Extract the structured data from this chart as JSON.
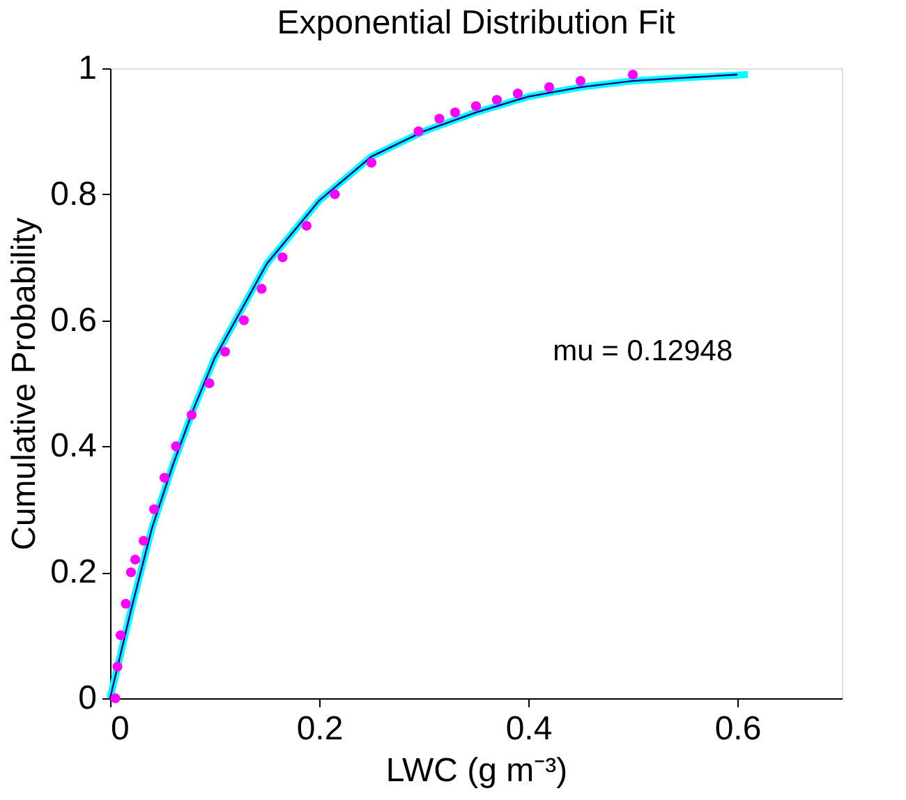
{
  "chart_data": {
    "type": "scatter",
    "title": "Exponential Distribution Fit",
    "xlabel": "LWC (g m⁻³)",
    "ylabel": "Cumulative Probability",
    "xlim": [
      0,
      0.7
    ],
    "xticks": [
      0,
      0.2,
      0.4,
      0.6
    ],
    "ylim": [
      0,
      1
    ],
    "yticks": [
      0,
      0.2,
      0.4,
      0.6,
      0.8,
      1
    ],
    "marker": "circle",
    "annotations": [
      "mu = 0.12948"
    ],
    "series": [
      {
        "color": "#ff00ff",
        "x": [
          0.005,
          0.007,
          0.01,
          0.015,
          0.02,
          0.024,
          0.032,
          0.042,
          0.052,
          0.063,
          0.078,
          0.095,
          0.11,
          0.128,
          0.145,
          0.165,
          0.188,
          0.215,
          0.25,
          0.295,
          0.315,
          0.33,
          0.35,
          0.37,
          0.39,
          0.42,
          0.45,
          0.5
        ],
        "values": [
          0,
          0.05,
          0.1,
          0.15,
          0.2,
          0.22,
          0.25,
          0.3,
          0.35,
          0.4,
          0.45,
          0.5,
          0.55,
          0.6,
          0.65,
          0.7,
          0.75,
          0.8,
          0.85,
          0.9,
          0.92,
          0.93,
          0.94,
          0.95,
          0.96,
          0.97,
          0.98,
          0.99
        ]
      },
      {
        "type": "line",
        "marker": "none",
        "line_style": "solid",
        "color": "#00ffff",
        "x": [
          0,
          0.02,
          0.04,
          0.06,
          0.08,
          0.1,
          0.12,
          0.15,
          0.18,
          0.2,
          0.25,
          0.3,
          0.35,
          0.4,
          0.45,
          0.5,
          0.55,
          0.61
        ],
        "values": [
          0,
          0.14,
          0.27,
          0.37,
          0.46,
          0.54,
          0.6,
          0.69,
          0.75,
          0.79,
          0.86,
          0.9,
          0.93,
          0.955,
          0.97,
          0.98,
          0.985,
          0.99
        ]
      },
      {
        "type": "line",
        "marker": "none",
        "line_style": "solid",
        "color": "#00008b",
        "x": [
          0,
          0.02,
          0.04,
          0.06,
          0.08,
          0.1,
          0.12,
          0.15,
          0.18,
          0.2,
          0.25,
          0.3,
          0.35,
          0.4,
          0.45,
          0.5,
          0.55,
          0.6
        ],
        "values": [
          0,
          0.14,
          0.27,
          0.37,
          0.46,
          0.54,
          0.6,
          0.69,
          0.75,
          0.79,
          0.86,
          0.9,
          0.93,
          0.955,
          0.97,
          0.98,
          0.985,
          0.99
        ]
      }
    ]
  }
}
